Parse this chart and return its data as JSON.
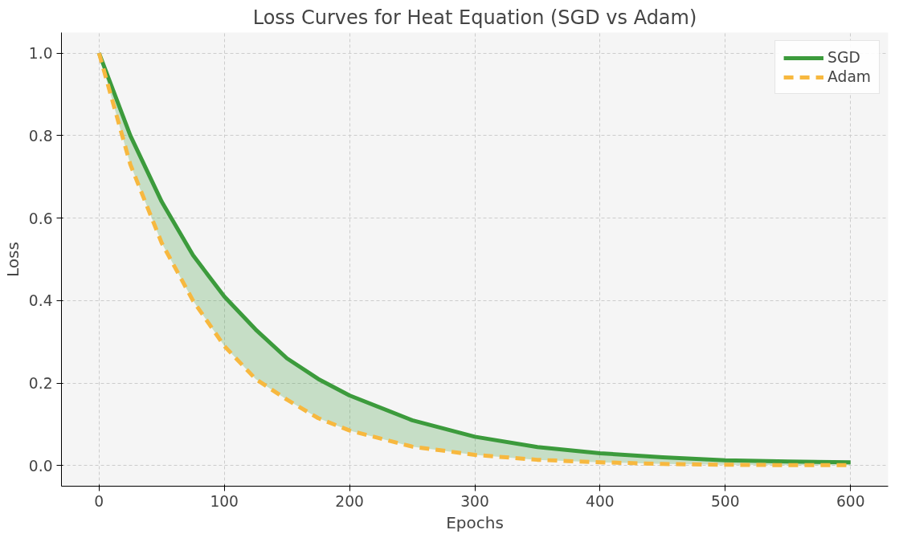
{
  "chart_data": {
    "type": "line",
    "title": "Loss Curves for Heat Equation (SGD vs Adam)",
    "xlabel": "Epochs",
    "ylabel": "Loss",
    "x": [
      0,
      25,
      50,
      75,
      100,
      125,
      150,
      175,
      200,
      250,
      300,
      350,
      400,
      450,
      500,
      550,
      600
    ],
    "series": [
      {
        "name": "SGD",
        "color": "#3c9b3c",
        "line_style": "solid",
        "values": [
          1.0,
          0.8,
          0.64,
          0.51,
          0.41,
          0.33,
          0.26,
          0.21,
          0.17,
          0.11,
          0.07,
          0.045,
          0.03,
          0.02,
          0.013,
          0.01,
          0.008
        ],
        "lower": [
          1.0,
          0.73,
          0.54,
          0.4,
          0.29,
          0.21,
          0.16,
          0.115,
          0.085,
          0.046,
          0.026,
          0.014,
          0.008,
          0.004,
          0.002,
          0.001,
          0.001
        ],
        "upper": [
          1.0,
          0.8,
          0.64,
          0.51,
          0.41,
          0.33,
          0.26,
          0.21,
          0.17,
          0.11,
          0.07,
          0.045,
          0.03,
          0.02,
          0.013,
          0.01,
          0.008
        ]
      },
      {
        "name": "Adam",
        "color": "#f7b83f",
        "line_style": "dashed",
        "values": [
          1.0,
          0.73,
          0.54,
          0.4,
          0.29,
          0.21,
          0.16,
          0.115,
          0.085,
          0.046,
          0.026,
          0.014,
          0.008,
          0.004,
          0.002,
          0.001,
          0.001
        ]
      }
    ],
    "xlim": [
      -30,
      630
    ],
    "ylim": [
      -0.05,
      1.05
    ],
    "xticks": [
      0,
      100,
      200,
      300,
      400,
      500,
      600
    ],
    "yticks": [
      {
        "value": 0,
        "label": "0.0"
      },
      0.2,
      0.4,
      0.6,
      0.8,
      {
        "value": 1,
        "label": "1.0"
      }
    ],
    "grid": true,
    "legend": "top right"
  }
}
